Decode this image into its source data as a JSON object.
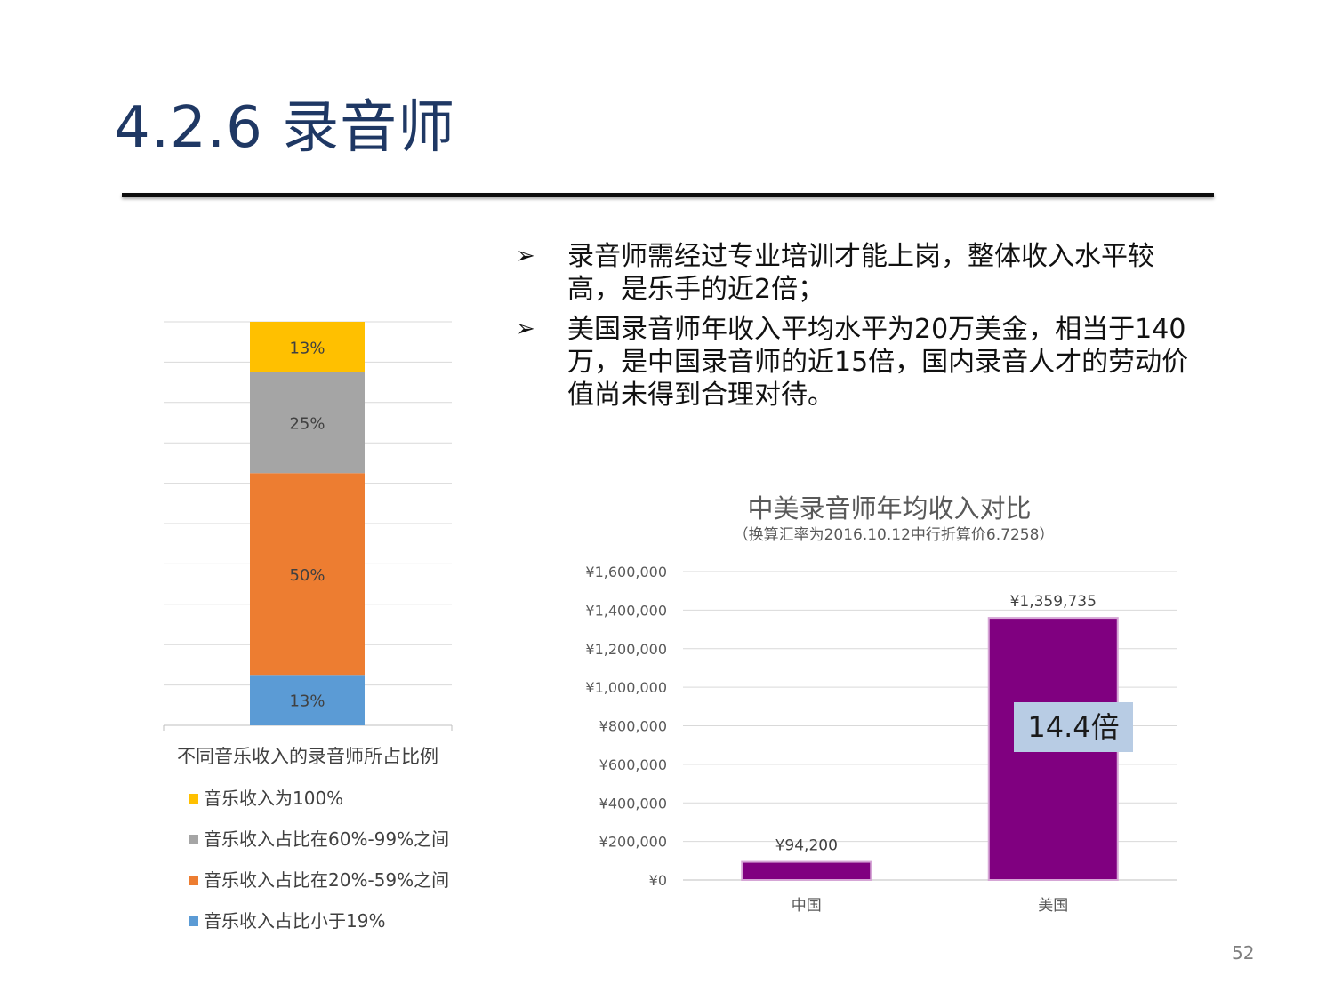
{
  "slide": {
    "title": "4.2.6  录音师",
    "page_number": "52"
  },
  "bullets": [
    {
      "marker": "➢",
      "text": "录音师需经过专业培训才能上岗，整体收入水平较高，是乐手的近2倍；"
    },
    {
      "marker": "➢",
      "text": "美国录音师年收入平均水平为20万美金，相当于140万，是中国录音师的近15倍，国内录音人才的劳动价值尚未得到合理对待。"
    }
  ],
  "colors": {
    "title": "#1f3864",
    "bar_purple": "#800080",
    "inset_bg": "#b8cce4"
  },
  "chart_data": [
    {
      "type": "bar",
      "stacked": true,
      "title": "不同音乐收入的录音师所占比例",
      "categories": [
        ""
      ],
      "ylim": [
        0,
        100
      ],
      "series": [
        {
          "name": "音乐收入占比小于19%",
          "values": [
            12.5
          ],
          "label": "13%",
          "color": "#5b9bd5"
        },
        {
          "name": "音乐收入占比在20%-59%之间",
          "values": [
            50
          ],
          "label": "50%",
          "color": "#ed7d31"
        },
        {
          "name": "音乐收入占比在60%-99%之间",
          "values": [
            25
          ],
          "label": "25%",
          "color": "#a5a5a5"
        },
        {
          "name": "音乐收入为100%",
          "values": [
            12.5
          ],
          "label": "13%",
          "color": "#ffc000"
        }
      ],
      "legend_order": [
        "音乐收入为100%",
        "音乐收入占比在60%-99%之间",
        "音乐收入占比在20%-59%之间",
        "音乐收入占比小于19%"
      ],
      "grid": true
    },
    {
      "type": "bar",
      "title": "中美录音师年均收入对比",
      "subtitle": "（换算汇率为2016.10.12中行折算价6.7258）",
      "categories": [
        "中国",
        "美国"
      ],
      "values": [
        94200,
        1359735
      ],
      "data_labels": [
        "¥94,200",
        "¥1,359,735"
      ],
      "ylim": [
        0,
        1600000
      ],
      "yticks": [
        0,
        200000,
        400000,
        600000,
        800000,
        1000000,
        1200000,
        1400000,
        1600000
      ],
      "ytick_labels": [
        "¥0",
        "¥200,000",
        "¥400,000",
        "¥600,000",
        "¥800,000",
        "¥1,000,000",
        "¥1,200,000",
        "¥1,400,000",
        "¥1,600,000"
      ],
      "annotation": "14.4倍",
      "grid": true
    }
  ]
}
